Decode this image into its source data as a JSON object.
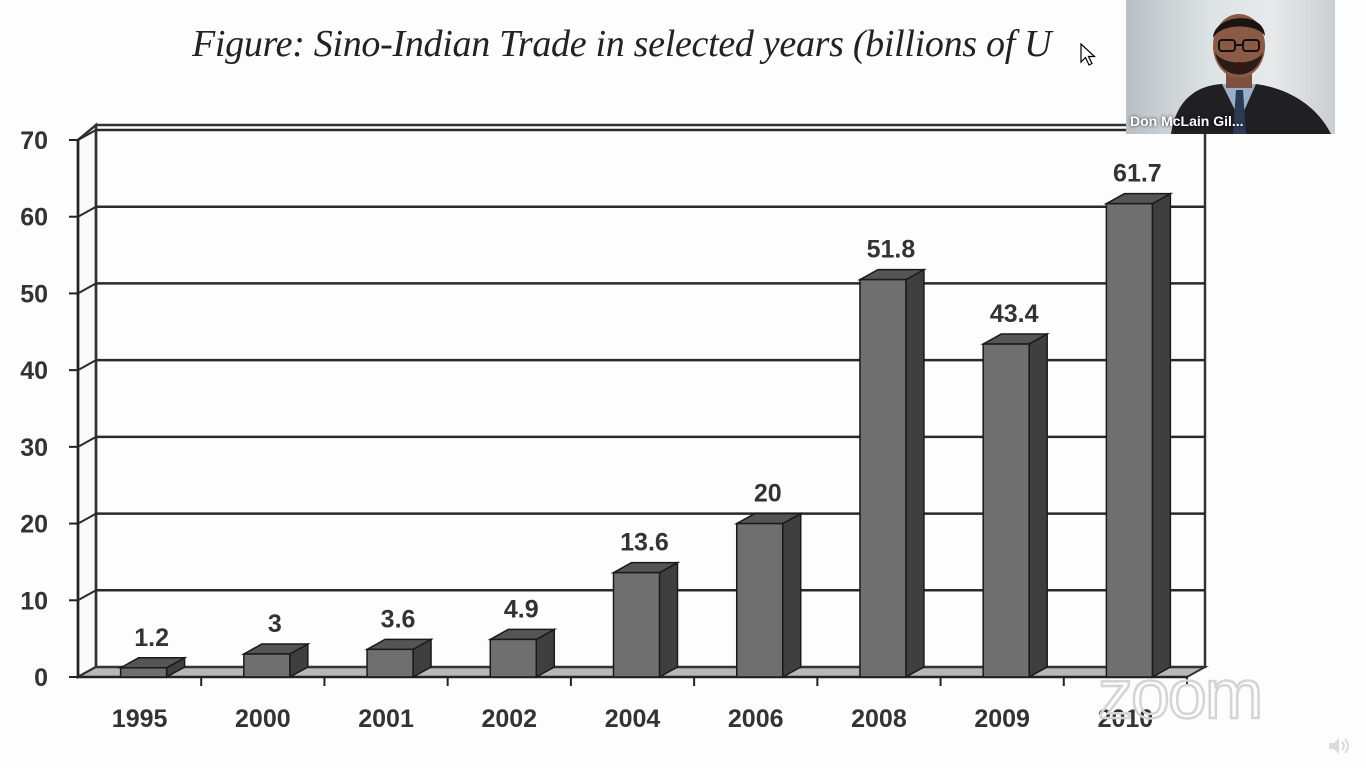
{
  "chart_data": {
    "type": "bar",
    "title": "Figure: Sino-Indian Trade in selected years (billions of U",
    "categories": [
      "1995",
      "2000",
      "2001",
      "2002",
      "2004",
      "2006",
      "2008",
      "2009",
      "2010"
    ],
    "values": [
      1.2,
      3,
      3.6,
      4.9,
      13.6,
      20,
      51.8,
      43.4,
      61.7
    ],
    "data_labels": [
      "1.2",
      "3",
      "3.6",
      "4.9",
      "13.6",
      "20",
      "51.8",
      "43.4",
      "61.7"
    ],
    "yticks": [
      "0",
      "10",
      "20",
      "30",
      "40",
      "50",
      "60",
      "70"
    ],
    "ylim": [
      0,
      70
    ],
    "grid": true,
    "style": "3d-bar",
    "colors": {
      "bar_front": "#6f6f6f",
      "bar_side": "#3f3f3f",
      "bar_top": "#555555",
      "grid": "#2a2a2a"
    }
  },
  "video_tile": {
    "participant_name": "Don McLain Gil...",
    "colors": {
      "jacket": "#1f1f24",
      "shirt": "#9ab0c8",
      "skin": "#8a5a46"
    }
  },
  "watermark": {
    "text": "zoom",
    "color": "#d0d0d0"
  },
  "icons": {
    "volume": "speaker-icon",
    "cursor": "mouse-pointer-icon"
  }
}
